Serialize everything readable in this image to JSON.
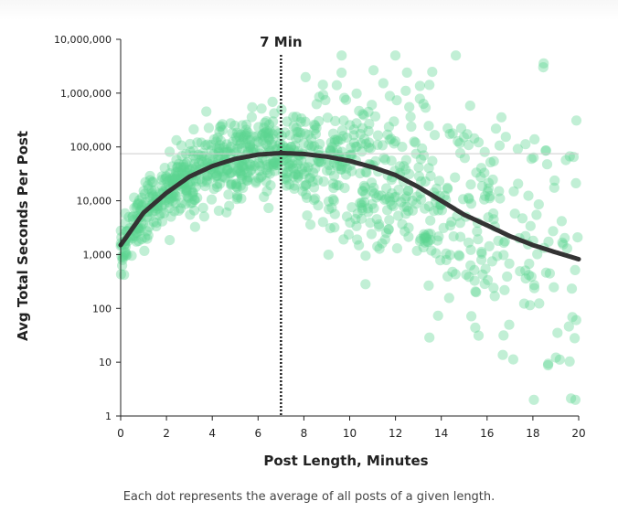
{
  "chart_data": {
    "type": "scatter",
    "title": "",
    "xlabel": "Post Length, Minutes",
    "ylabel": "Avg Total Seconds Per Post",
    "x_ticks": [
      "0",
      "2",
      "4",
      "6",
      "8",
      "10",
      "12",
      "14",
      "16",
      "18",
      "20"
    ],
    "y_ticks": [
      "1",
      "10",
      "100",
      "1,000",
      "10,000",
      "100,000",
      "1,000,000",
      "10,000,000"
    ],
    "xlim": [
      0,
      20
    ],
    "ylim": [
      1,
      10000000
    ],
    "y_scale": "log",
    "annotation": {
      "label": "7 Min",
      "x": 7
    },
    "reference_line_y": 75000,
    "trend_curve": {
      "name": "fit",
      "x": [
        0,
        1,
        2,
        3,
        4,
        5,
        6,
        7,
        8,
        9,
        10,
        11,
        12,
        13,
        14,
        15,
        16,
        17,
        18,
        19,
        20
      ],
      "y": [
        1500,
        6000,
        14000,
        28000,
        44000,
        60000,
        72000,
        77000,
        74000,
        66000,
        55000,
        42000,
        30000,
        18000,
        10000,
        5500,
        3500,
        2200,
        1500,
        1100,
        820
      ]
    },
    "colors": {
      "points": "#5dd490",
      "curve": "#333333",
      "axis": "#222222",
      "ref_line": "#cccccc"
    }
  },
  "caption": "Each dot represents the average of all posts of a given length."
}
